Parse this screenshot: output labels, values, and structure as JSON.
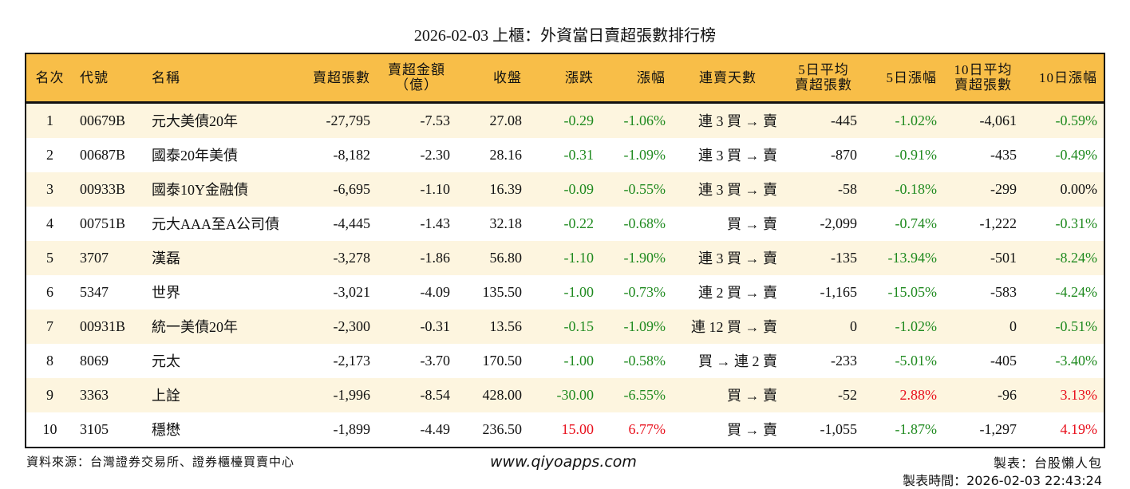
{
  "title": "2026-02-03 上櫃：外資當日賣超張數排行榜",
  "colors": {
    "header_bg": "#F8BE48",
    "stripe": "#FDF5DF",
    "down": "#1F8A1F",
    "up": "#E8101C"
  },
  "headers": [
    "名次",
    "代號",
    "名稱",
    "賣超張數",
    "賣超金額\n（億）",
    "收盤",
    "漲跌",
    "漲幅",
    "連賣天數",
    "5日平均\n賣超張數",
    "5日漲幅",
    "10日平均\n賣超張數",
    "10日漲幅"
  ],
  "rows": [
    [
      "1",
      "00679B",
      "元大美債20年",
      "-27,795",
      "-7.53",
      "27.08",
      "-0.29",
      "-1.06%",
      "連 3 買 → 賣",
      "-445",
      "-1.02%",
      "-4,061",
      "-0.59%"
    ],
    [
      "2",
      "00687B",
      "國泰20年美債",
      "-8,182",
      "-2.30",
      "28.16",
      "-0.31",
      "-1.09%",
      "連 3 買 → 賣",
      "-870",
      "-0.91%",
      "-435",
      "-0.49%"
    ],
    [
      "3",
      "00933B",
      "國泰10Y金融債",
      "-6,695",
      "-1.10",
      "16.39",
      "-0.09",
      "-0.55%",
      "連 3 買 → 賣",
      "-58",
      "-0.18%",
      "-299",
      "0.00%"
    ],
    [
      "4",
      "00751B",
      "元大AAA至A公司債",
      "-4,445",
      "-1.43",
      "32.18",
      "-0.22",
      "-0.68%",
      "買 → 賣",
      "-2,099",
      "-0.74%",
      "-1,222",
      "-0.31%"
    ],
    [
      "5",
      "3707",
      "漢磊",
      "-3,278",
      "-1.86",
      "56.80",
      "-1.10",
      "-1.90%",
      "連 3 買 → 賣",
      "-135",
      "-13.94%",
      "-501",
      "-8.24%"
    ],
    [
      "6",
      "5347",
      "世界",
      "-3,021",
      "-4.09",
      "135.50",
      "-1.00",
      "-0.73%",
      "連 2 買 → 賣",
      "-1,165",
      "-15.05%",
      "-583",
      "-4.24%"
    ],
    [
      "7",
      "00931B",
      "統一美債20年",
      "-2,300",
      "-0.31",
      "13.56",
      "-0.15",
      "-1.09%",
      "連 12 買 → 賣",
      "0",
      "-1.02%",
      "0",
      "-0.51%"
    ],
    [
      "8",
      "8069",
      "元太",
      "-2,173",
      "-3.70",
      "170.50",
      "-1.00",
      "-0.58%",
      "買 → 連 2 賣",
      "-233",
      "-5.01%",
      "-405",
      "-3.40%"
    ],
    [
      "9",
      "3363",
      "上詮",
      "-1,996",
      "-8.54",
      "428.00",
      "-30.00",
      "-6.55%",
      "買 → 賣",
      "-52",
      "2.88%",
      "-96",
      "3.13%"
    ],
    [
      "10",
      "3105",
      "穩懋",
      "-1,899",
      "-4.49",
      "236.50",
      "15.00",
      "6.77%",
      "買 → 賣",
      "-1,055",
      "-1.87%",
      "-1,297",
      "4.19%"
    ]
  ],
  "footer": {
    "source": "資料來源：台灣證券交易所、證券櫃檯買賣中心",
    "website": "www.qiyoapps.com",
    "author": "製表：台股懶人包",
    "time": "製表時間：2026-02-03 22:43:24"
  }
}
